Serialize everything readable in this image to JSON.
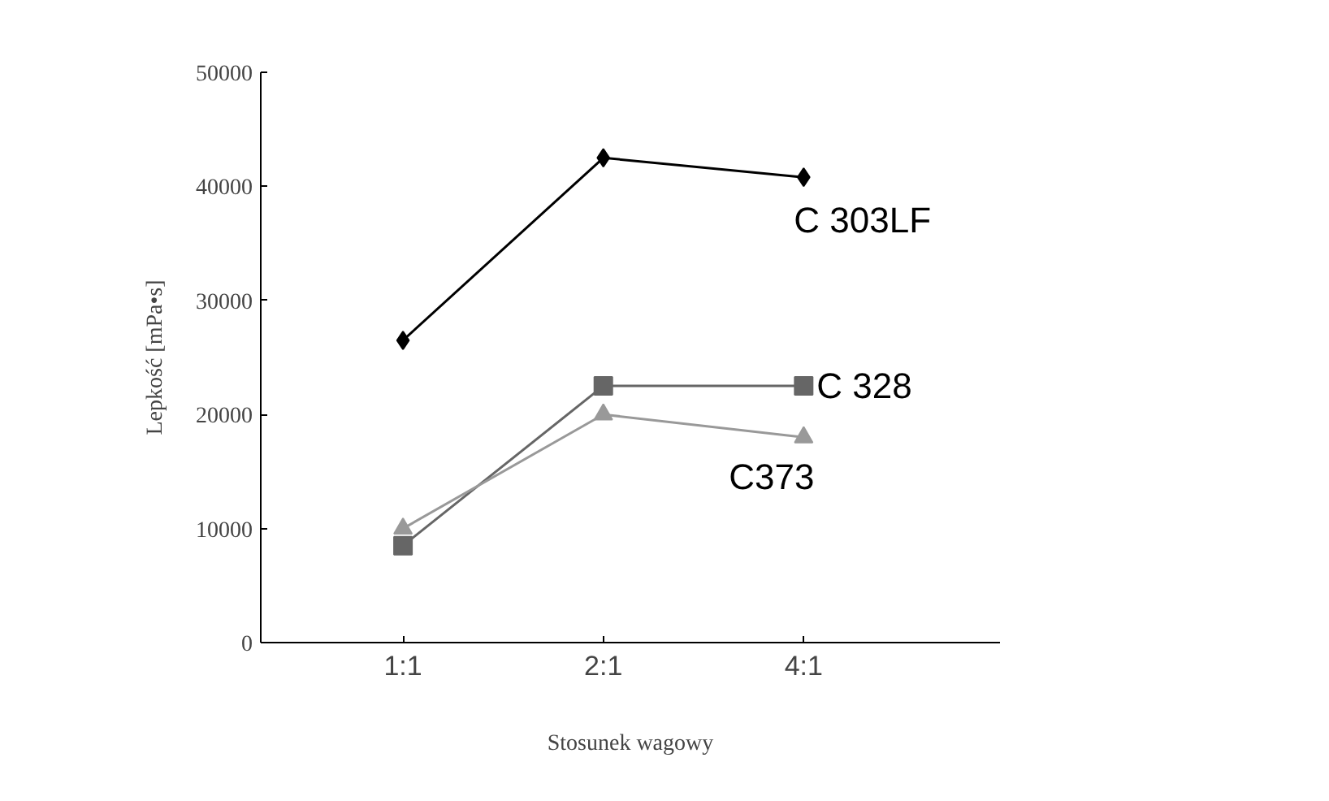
{
  "chart_data": {
    "type": "line",
    "xlabel": "Stosunek wagowy",
    "ylabel": "Lepkość [mPa•s]",
    "categories": [
      "1:1",
      "2:1",
      "4:1"
    ],
    "series": [
      {
        "name": "C 303LF",
        "color": "#000000",
        "marker": "diamond",
        "values": [
          26500,
          42500,
          40800
        ]
      },
      {
        "name": "C 328",
        "color": "#666666",
        "marker": "square",
        "values": [
          8500,
          22500,
          22500
        ]
      },
      {
        "name": "C373",
        "color": "#999999",
        "marker": "triangle",
        "values": [
          10000,
          20000,
          18000
        ]
      }
    ],
    "ylim": [
      0,
      50000
    ],
    "yticks": [
      0,
      10000,
      20000,
      30000,
      40000,
      50000
    ],
    "grid": false
  }
}
